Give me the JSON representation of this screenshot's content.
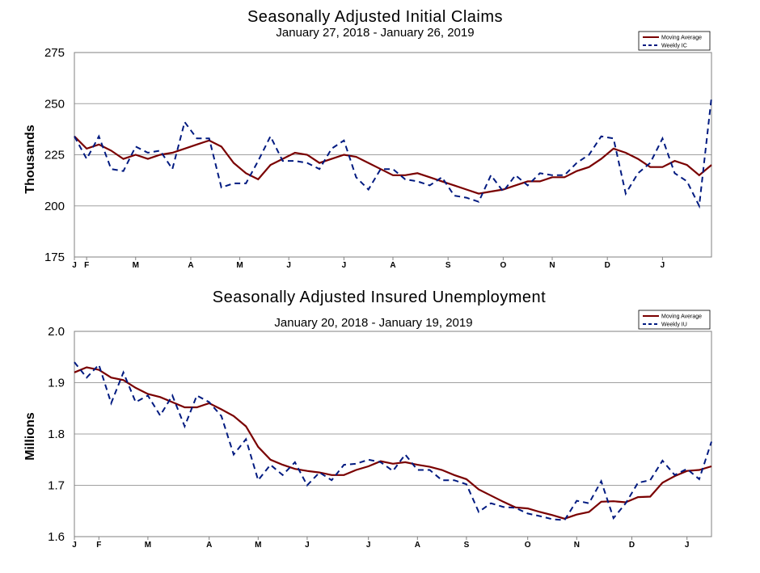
{
  "chart_data": [
    {
      "type": "line",
      "title": "Seasonally Adjusted Initial Claims",
      "subtitle": "January 27, 2018 - January 26, 2019",
      "ylabel": "Thousands",
      "ylim": [
        175,
        275
      ],
      "yticks": [
        "175",
        "200",
        "225",
        "250",
        "275"
      ],
      "month_ticks": [
        {
          "label": "J",
          "week": 0
        },
        {
          "label": "F",
          "week": 1
        },
        {
          "label": "M",
          "week": 5
        },
        {
          "label": "A",
          "week": 9.5
        },
        {
          "label": "M",
          "week": 13.5
        },
        {
          "label": "J",
          "week": 17.5
        },
        {
          "label": "J",
          "week": 22
        },
        {
          "label": "A",
          "week": 26
        },
        {
          "label": "S",
          "week": 30.5
        },
        {
          "label": "O",
          "week": 35
        },
        {
          "label": "N",
          "week": 39
        },
        {
          "label": "D",
          "week": 43.5
        },
        {
          "label": "J",
          "week": 48
        }
      ],
      "legend": [
        "Moving Average",
        "Weekly IC"
      ],
      "series": [
        {
          "name": "Moving Average",
          "values": [
            234,
            228,
            230,
            227,
            223,
            225,
            223,
            225,
            226,
            228,
            230,
            232,
            229,
            221,
            216,
            213,
            220,
            223,
            226,
            225,
            221,
            223,
            225,
            224,
            221,
            218,
            215,
            215,
            216,
            214,
            212,
            210,
            208,
            206,
            207,
            208,
            210,
            212,
            212,
            214,
            214,
            217,
            219,
            223,
            228,
            226,
            223,
            219,
            219,
            222,
            220,
            215,
            220
          ]
        },
        {
          "name": "Weekly IC",
          "values": [
            234,
            223,
            234,
            218,
            217,
            229,
            226,
            227,
            218,
            241,
            233,
            233,
            209,
            211,
            211,
            222,
            234,
            222,
            222,
            221,
            218,
            228,
            232,
            214,
            208,
            218,
            218,
            213,
            212,
            210,
            214,
            205,
            204,
            202,
            215,
            207,
            215,
            210,
            216,
            215,
            215,
            221,
            225,
            234,
            233,
            206,
            216,
            221,
            233,
            216,
            212,
            200,
            253
          ]
        }
      ]
    },
    {
      "type": "line",
      "title": "Seasonally Adjusted Insured Unemployment",
      "subtitle": "January 20, 2018 - January 19, 2019",
      "ylabel": "Millions",
      "ylim": [
        1.6,
        2.0
      ],
      "yticks": [
        "1.6",
        "1.7",
        "1.8",
        "1.9",
        "2.0"
      ],
      "month_ticks": [
        {
          "label": "J",
          "week": 0
        },
        {
          "label": "F",
          "week": 2
        },
        {
          "label": "M",
          "week": 6
        },
        {
          "label": "A",
          "week": 11
        },
        {
          "label": "M",
          "week": 15
        },
        {
          "label": "J",
          "week": 19
        },
        {
          "label": "J",
          "week": 24
        },
        {
          "label": "A",
          "week": 28
        },
        {
          "label": "S",
          "week": 32
        },
        {
          "label": "O",
          "week": 37
        },
        {
          "label": "N",
          "week": 41
        },
        {
          "label": "D",
          "week": 45.5
        },
        {
          "label": "J",
          "week": 50
        }
      ],
      "legend": [
        "Moving Average",
        "Weekly IU"
      ],
      "series": [
        {
          "name": "Moving Average",
          "values": [
            1.92,
            1.93,
            1.925,
            1.91,
            1.905,
            1.89,
            1.878,
            1.872,
            1.862,
            1.852,
            1.852,
            1.86,
            1.848,
            1.835,
            1.815,
            1.775,
            1.75,
            1.74,
            1.732,
            1.728,
            1.725,
            1.72,
            1.72,
            1.73,
            1.737,
            1.747,
            1.742,
            1.745,
            1.74,
            1.736,
            1.73,
            1.72,
            1.712,
            1.692,
            1.68,
            1.668,
            1.657,
            1.655,
            1.648,
            1.642,
            1.635,
            1.643,
            1.648,
            1.668,
            1.669,
            1.667,
            1.677,
            1.678,
            1.705,
            1.718,
            1.728,
            1.73,
            1.737
          ]
        },
        {
          "name": "Weekly IU",
          "values": [
            1.94,
            1.91,
            1.935,
            1.86,
            1.92,
            1.862,
            1.875,
            1.836,
            1.875,
            1.815,
            1.875,
            1.862,
            1.835,
            1.76,
            1.79,
            1.71,
            1.74,
            1.72,
            1.745,
            1.7,
            1.725,
            1.71,
            1.74,
            1.742,
            1.75,
            1.745,
            1.728,
            1.76,
            1.73,
            1.73,
            1.71,
            1.71,
            1.702,
            1.648,
            1.665,
            1.658,
            1.656,
            1.645,
            1.64,
            1.634,
            1.632,
            1.67,
            1.665,
            1.708,
            1.636,
            1.665,
            1.705,
            1.71,
            1.748,
            1.72,
            1.732,
            1.712,
            1.785
          ]
        }
      ]
    }
  ]
}
